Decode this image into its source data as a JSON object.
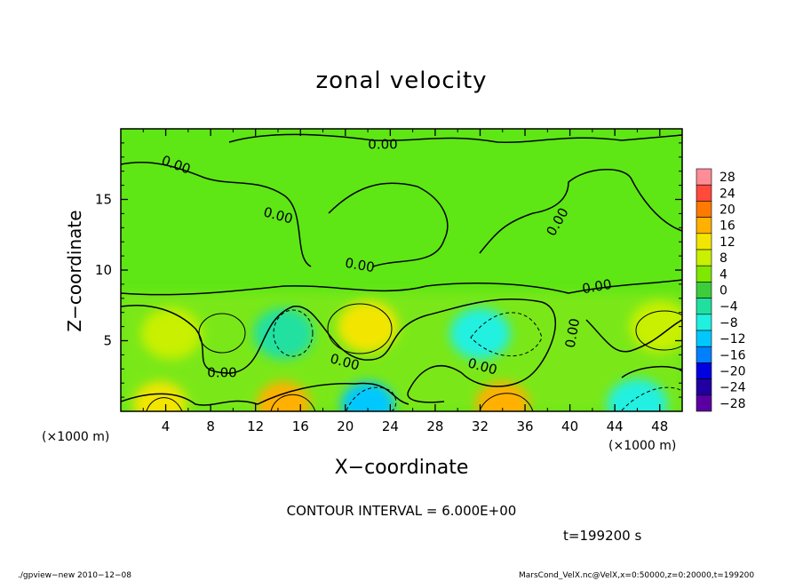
{
  "chart_data": {
    "type": "heatmap",
    "title": "zonal velocity",
    "xlabel": "X−coordinate",
    "ylabel": "Z−coordinate",
    "x_unit": "(×1000 m)",
    "xlim": [
      0,
      50
    ],
    "ylim": [
      0,
      20
    ],
    "x_ticks": [
      4,
      8,
      12,
      16,
      20,
      24,
      28,
      32,
      36,
      40,
      44,
      48
    ],
    "x_tick_labels": [
      "4",
      "8",
      "12",
      "16",
      "20",
      "24",
      "28",
      "32",
      "36",
      "40",
      "44",
      "48"
    ],
    "y_ticks": [
      5,
      10,
      15
    ],
    "y_tick_labels": [
      "5",
      "10",
      "15"
    ],
    "colorbar": {
      "levels": [
        28,
        24,
        20,
        16,
        12,
        8,
        4,
        0,
        -4,
        -8,
        -12,
        -16,
        -20,
        -24,
        -28
      ],
      "labels": [
        "28",
        "24",
        "20",
        "16",
        "12",
        "8",
        "4",
        "0",
        "−4",
        "−8",
        "−12",
        "−16",
        "−20",
        "−24",
        "−28"
      ],
      "colors": [
        "#ff8c96",
        "#ff4a3c",
        "#ff7a00",
        "#ffb000",
        "#f2e600",
        "#c8f000",
        "#7ee800",
        "#3ccc3c",
        "#20e0a0",
        "#20f0e0",
        "#00c8ff",
        "#0080ff",
        "#0000e0",
        "#2000a0",
        "#5a00a0"
      ]
    },
    "contour_labels": [
      "0.00",
      "0.00",
      "0.00",
      "0.00",
      "0.00",
      "0.00",
      "0.00",
      "0.00",
      "0.00",
      "0.00"
    ],
    "features": [
      {
        "x": 4.5,
        "z": 5.5,
        "value": 8
      },
      {
        "x": 14.5,
        "z": 5.5,
        "value": -4
      },
      {
        "x": 22,
        "z": 6,
        "value": 10
      },
      {
        "x": 32,
        "z": 5.5,
        "value": -8
      },
      {
        "x": 48,
        "z": 6,
        "value": 8
      },
      {
        "x": 3.5,
        "z": 0.5,
        "value": 12
      },
      {
        "x": 14.5,
        "z": 0.5,
        "value": 14
      },
      {
        "x": 22,
        "z": 0.5,
        "value": -12
      },
      {
        "x": 34,
        "z": 0.5,
        "value": 16
      },
      {
        "x": 46,
        "z": 0.5,
        "value": -8
      }
    ]
  },
  "contour_interval": "CONTOUR INTERVAL = 6.000E+00",
  "time_label": "t=199200 s",
  "footer_left": "./gpview−new  2010−12−08",
  "footer_right": "MarsCond_VelX.nc@VelX,x=0:50000,z=0:20000,t=199200"
}
